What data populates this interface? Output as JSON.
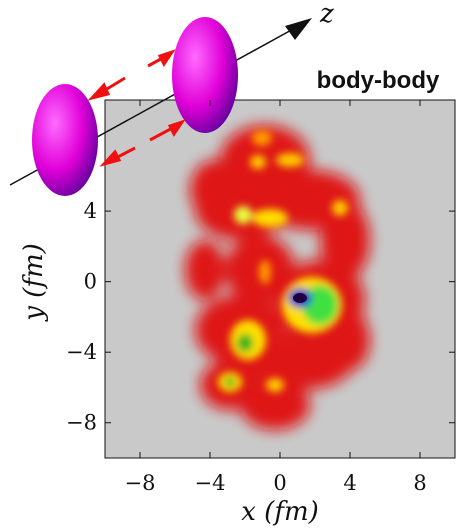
{
  "chart_data": {
    "type": "heatmap",
    "title": "body-body",
    "x_label": "x (fm)",
    "y_label": "y (fm)",
    "axis_symbol": "z",
    "xlim": [
      -10,
      10
    ],
    "ylim": [
      -10,
      10.3
    ],
    "xticks": [
      {
        "value": -8,
        "label": "−8"
      },
      {
        "value": -4,
        "label": "−4"
      },
      0,
      4,
      8
    ],
    "yticks": [
      {
        "value": -8,
        "label": "−8"
      },
      {
        "value": -4,
        "label": "−4"
      },
      0,
      4
    ]
  }
}
